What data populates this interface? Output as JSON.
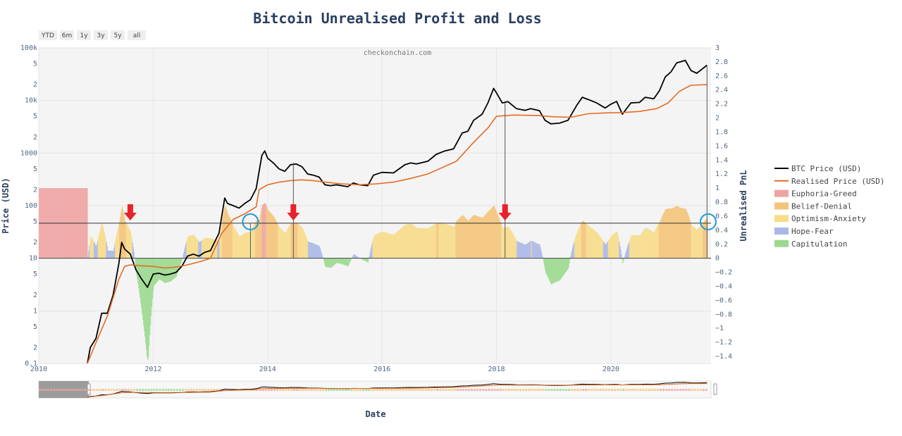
{
  "chart_data": {
    "type": "line",
    "title": "Bitcoin Unrealised Profit and Loss",
    "watermark": "checkonchain.com",
    "xlabel": "Date",
    "ylabel": "Price (USD)",
    "y2label": "Unrealised PnL",
    "x_ticks": [
      "2010",
      "2012",
      "2014",
      "2016",
      "2018",
      "2020"
    ],
    "x_range": [
      2010.0,
      2021.75
    ],
    "y_scale": "log",
    "y_range": [
      0.1,
      100000
    ],
    "y_ticks": [
      "100k",
      "5",
      "2",
      "10k",
      "5",
      "2",
      "1000",
      "5",
      "2",
      "100",
      "5",
      "2",
      "10",
      "5",
      "2",
      "1",
      "5",
      "2",
      "0.1"
    ],
    "y2_range": [
      -1.5,
      3.0
    ],
    "y2_ticks": [
      "3",
      "2.8",
      "2.6",
      "2.4",
      "2.2",
      "2",
      "1.8",
      "1.6",
      "1.4",
      "1.2",
      "1",
      "0.8",
      "0.6",
      "0.4",
      "0.2",
      "0",
      "−0.2",
      "−0.4",
      "−0.6",
      "−0.8",
      "−1",
      "−1.2",
      "−1.4"
    ],
    "range_selector": [
      "YTD",
      "6m",
      "1y",
      "3y",
      "5y",
      "all"
    ],
    "legend_position": "right",
    "legend": [
      {
        "name": "BTC Price (USD)",
        "color": "#000000",
        "kind": "line"
      },
      {
        "name": "Realised Price (USD)",
        "color": "#e46c24",
        "kind": "line"
      },
      {
        "name": "Euphoria-Greed",
        "color": "#f0a3a3",
        "kind": "area"
      },
      {
        "name": "Belief-Denial",
        "color": "#f3c47a",
        "kind": "area"
      },
      {
        "name": "Optimism-Anxiety",
        "color": "#f7dc8a",
        "kind": "area"
      },
      {
        "name": "Hope-Fear",
        "color": "#aab8e8",
        "kind": "area"
      },
      {
        "name": "Capitulation",
        "color": "#9bd98f",
        "kind": "area"
      }
    ],
    "series": [
      {
        "name": "BTC Price (USD)",
        "color": "#000000",
        "points": [
          [
            2010.85,
            0.1
          ],
          [
            2010.9,
            0.2
          ],
          [
            2011.0,
            0.3
          ],
          [
            2011.1,
            0.9
          ],
          [
            2011.2,
            0.9
          ],
          [
            2011.3,
            2
          ],
          [
            2011.4,
            8
          ],
          [
            2011.45,
            20
          ],
          [
            2011.5,
            15
          ],
          [
            2011.6,
            12
          ],
          [
            2011.7,
            6
          ],
          [
            2011.8,
            4
          ],
          [
            2011.9,
            2.8
          ],
          [
            2012.0,
            5
          ],
          [
            2012.1,
            5.2
          ],
          [
            2012.2,
            4.8
          ],
          [
            2012.3,
            5
          ],
          [
            2012.4,
            5.4
          ],
          [
            2012.5,
            7
          ],
          [
            2012.6,
            11
          ],
          [
            2012.7,
            12
          ],
          [
            2012.8,
            11
          ],
          [
            2012.9,
            13
          ],
          [
            2013.0,
            14
          ],
          [
            2013.15,
            30
          ],
          [
            2013.25,
            140
          ],
          [
            2013.3,
            110
          ],
          [
            2013.4,
            100
          ],
          [
            2013.5,
            90
          ],
          [
            2013.6,
            110
          ],
          [
            2013.7,
            130
          ],
          [
            2013.8,
            210
          ],
          [
            2013.9,
            900
          ],
          [
            2013.95,
            1100
          ],
          [
            2014.0,
            800
          ],
          [
            2014.1,
            650
          ],
          [
            2014.2,
            500
          ],
          [
            2014.3,
            450
          ],
          [
            2014.4,
            600
          ],
          [
            2014.5,
            620
          ],
          [
            2014.6,
            550
          ],
          [
            2014.7,
            400
          ],
          [
            2014.8,
            380
          ],
          [
            2014.9,
            350
          ],
          [
            2015.0,
            250
          ],
          [
            2015.1,
            240
          ],
          [
            2015.2,
            250
          ],
          [
            2015.4,
            230
          ],
          [
            2015.5,
            270
          ],
          [
            2015.6,
            250
          ],
          [
            2015.75,
            240
          ],
          [
            2015.85,
            380
          ],
          [
            2016.0,
            430
          ],
          [
            2016.2,
            420
          ],
          [
            2016.4,
            600
          ],
          [
            2016.5,
            650
          ],
          [
            2016.6,
            620
          ],
          [
            2016.8,
            700
          ],
          [
            2016.95,
            950
          ],
          [
            2017.1,
            1100
          ],
          [
            2017.25,
            1200
          ],
          [
            2017.4,
            2400
          ],
          [
            2017.5,
            2600
          ],
          [
            2017.6,
            4200
          ],
          [
            2017.75,
            5500
          ],
          [
            2017.85,
            9000
          ],
          [
            2017.95,
            17000
          ],
          [
            2018.0,
            14000
          ],
          [
            2018.1,
            9000
          ],
          [
            2018.2,
            9500
          ],
          [
            2018.35,
            7000
          ],
          [
            2018.5,
            6500
          ],
          [
            2018.6,
            7000
          ],
          [
            2018.75,
            6400
          ],
          [
            2018.85,
            4200
          ],
          [
            2018.95,
            3600
          ],
          [
            2019.1,
            3700
          ],
          [
            2019.25,
            4200
          ],
          [
            2019.4,
            8000
          ],
          [
            2019.5,
            11500
          ],
          [
            2019.6,
            10500
          ],
          [
            2019.75,
            9000
          ],
          [
            2019.9,
            7200
          ],
          [
            2020.0,
            8500
          ],
          [
            2020.1,
            9600
          ],
          [
            2020.2,
            5500
          ],
          [
            2020.35,
            9000
          ],
          [
            2020.5,
            9200
          ],
          [
            2020.6,
            11500
          ],
          [
            2020.75,
            10800
          ],
          [
            2020.85,
            15500
          ],
          [
            2020.95,
            28000
          ],
          [
            2021.05,
            35000
          ],
          [
            2021.15,
            52000
          ],
          [
            2021.3,
            58000
          ],
          [
            2021.4,
            37000
          ],
          [
            2021.5,
            33000
          ],
          [
            2021.6,
            40000
          ],
          [
            2021.68,
            47000
          ]
        ]
      },
      {
        "name": "Realised Price (USD)",
        "color": "#e46c24",
        "points": [
          [
            2010.85,
            0.1
          ],
          [
            2011.0,
            0.25
          ],
          [
            2011.2,
            0.8
          ],
          [
            2011.4,
            4
          ],
          [
            2011.5,
            7
          ],
          [
            2011.6,
            7.5
          ],
          [
            2011.8,
            7.2
          ],
          [
            2012.0,
            7
          ],
          [
            2012.2,
            6.5
          ],
          [
            2012.4,
            6.8
          ],
          [
            2012.6,
            7.5
          ],
          [
            2012.8,
            8.5
          ],
          [
            2013.0,
            10
          ],
          [
            2013.2,
            30
          ],
          [
            2013.4,
            55
          ],
          [
            2013.6,
            70
          ],
          [
            2013.8,
            95
          ],
          [
            2013.85,
            200
          ],
          [
            2014.0,
            250
          ],
          [
            2014.2,
            280
          ],
          [
            2014.4,
            300
          ],
          [
            2014.6,
            310
          ],
          [
            2014.8,
            300
          ],
          [
            2015.0,
            280
          ],
          [
            2015.3,
            260
          ],
          [
            2015.6,
            250
          ],
          [
            2015.9,
            260
          ],
          [
            2016.2,
            280
          ],
          [
            2016.5,
            330
          ],
          [
            2016.8,
            400
          ],
          [
            2017.0,
            500
          ],
          [
            2017.3,
            700
          ],
          [
            2017.6,
            1600
          ],
          [
            2017.85,
            3000
          ],
          [
            2018.0,
            5000
          ],
          [
            2018.3,
            5300
          ],
          [
            2018.7,
            5200
          ],
          [
            2019.0,
            4900
          ],
          [
            2019.3,
            4800
          ],
          [
            2019.6,
            5600
          ],
          [
            2019.9,
            5800
          ],
          [
            2020.2,
            5900
          ],
          [
            2020.5,
            6200
          ],
          [
            2020.8,
            7000
          ],
          [
            2021.0,
            9000
          ],
          [
            2021.2,
            15000
          ],
          [
            2021.4,
            19500
          ],
          [
            2021.68,
            20000
          ]
        ]
      }
    ]
  }
}
